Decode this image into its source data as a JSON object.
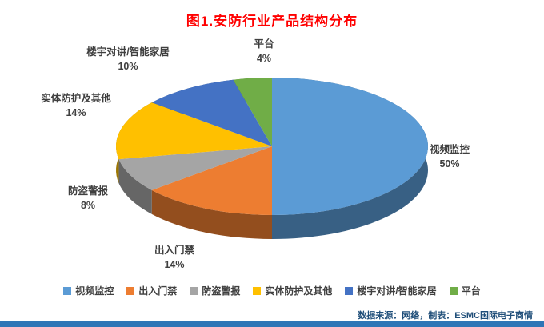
{
  "page": {
    "source_note": "数据来源：网络，制表：ESMC国际电子商情"
  },
  "chart_data": {
    "type": "pie",
    "style": "3d-pie",
    "title": "图1.安防行业产品结构分布",
    "categories": [
      "视频监控",
      "出入门禁",
      "防盗警报",
      "实体防护及其他",
      "楼宇对讲/智能家居",
      "平台"
    ],
    "values": [
      50,
      14,
      8,
      14,
      10,
      4
    ],
    "unit": "%",
    "colors": [
      "#5B9BD5",
      "#ED7D31",
      "#A5A5A5",
      "#FFC000",
      "#4472C4",
      "#70AD47"
    ],
    "start_angle_deg": 0,
    "direction": "clockwise",
    "legend_position": "bottom",
    "labels_format": "category + percent"
  },
  "colors": {
    "title": "#FF0000",
    "label_text": "#3F3F3F",
    "source_note": "#1F4E79",
    "bottom_bar": "#2E75B6"
  }
}
